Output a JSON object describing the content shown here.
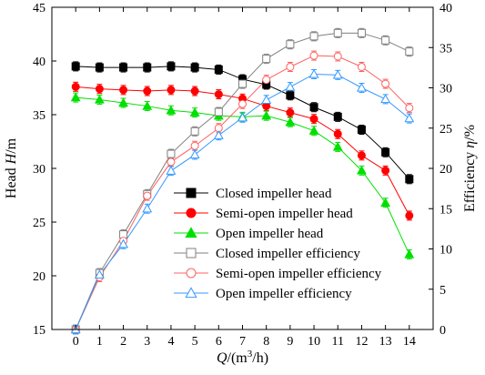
{
  "chart_data": {
    "type": "line",
    "x": [
      0,
      1,
      2,
      3,
      4,
      5,
      6,
      7,
      8,
      9,
      10,
      11,
      12,
      13,
      14
    ],
    "xlabel": {
      "prefix": "Q",
      "unit": "/(m",
      "sup": "3",
      "suffix": "/h)"
    },
    "ylabel_left": {
      "prefix": "Head ",
      "var": "H",
      "unit": "/m"
    },
    "ylabel_right": {
      "prefix": "Efficiency ",
      "var": "η",
      "unit": "/%"
    },
    "xlim": [
      -1,
      15
    ],
    "ylim_left": [
      15,
      45
    ],
    "ylim_right": [
      0,
      40
    ],
    "x_ticks": [
      0,
      1,
      2,
      3,
      4,
      5,
      6,
      7,
      8,
      9,
      10,
      11,
      12,
      13,
      14
    ],
    "y_left_ticks": [
      15,
      20,
      25,
      30,
      35,
      40,
      45
    ],
    "y_right_ticks": [
      0,
      5,
      10,
      15,
      20,
      25,
      30,
      35,
      40
    ],
    "legend_position": "bottom-center",
    "grid": false,
    "series": [
      {
        "name": "Closed impeller head",
        "axis": "left",
        "color": "#000000",
        "marker": "square",
        "filled": true,
        "values": [
          39.5,
          39.4,
          39.4,
          39.4,
          39.5,
          39.4,
          39.2,
          38.3,
          37.8,
          36.8,
          35.7,
          34.8,
          33.6,
          31.5,
          29.0
        ]
      },
      {
        "name": "Semi-open impeller head",
        "axis": "left",
        "color": "#ff0000",
        "marker": "circle",
        "filled": true,
        "values": [
          37.6,
          37.4,
          37.3,
          37.2,
          37.3,
          37.2,
          36.9,
          36.5,
          35.8,
          35.2,
          34.6,
          33.2,
          31.2,
          29.8,
          25.6
        ]
      },
      {
        "name": "Open impeller head",
        "axis": "left",
        "color": "#00e000",
        "marker": "triangle",
        "filled": true,
        "values": [
          36.6,
          36.4,
          36.1,
          35.8,
          35.4,
          35.2,
          34.9,
          34.8,
          34.9,
          34.3,
          33.5,
          32.0,
          29.8,
          26.8,
          22.0
        ]
      },
      {
        "name": "Closed impeller efficiency",
        "axis": "right",
        "color": "#808080",
        "marker": "square",
        "filled": false,
        "values": [
          0.0,
          7.0,
          11.8,
          16.8,
          21.8,
          24.6,
          27.0,
          30.5,
          33.6,
          35.4,
          36.4,
          36.8,
          36.8,
          35.9,
          34.5
        ]
      },
      {
        "name": "Semi-open impeller efficiency",
        "axis": "right",
        "color": "#ff6060",
        "marker": "circle",
        "filled": false,
        "values": [
          0.0,
          6.5,
          11.0,
          16.6,
          20.8,
          22.8,
          25.0,
          28.0,
          31.0,
          32.6,
          34.0,
          33.9,
          32.6,
          30.5,
          27.5
        ]
      },
      {
        "name": "Open impeller efficiency",
        "axis": "right",
        "color": "#3399ff",
        "marker": "triangle",
        "filled": false,
        "values": [
          0.0,
          6.8,
          10.6,
          15.0,
          19.7,
          21.7,
          24.1,
          26.3,
          28.5,
          30.1,
          31.7,
          31.6,
          30.0,
          28.6,
          26.2
        ]
      }
    ]
  }
}
